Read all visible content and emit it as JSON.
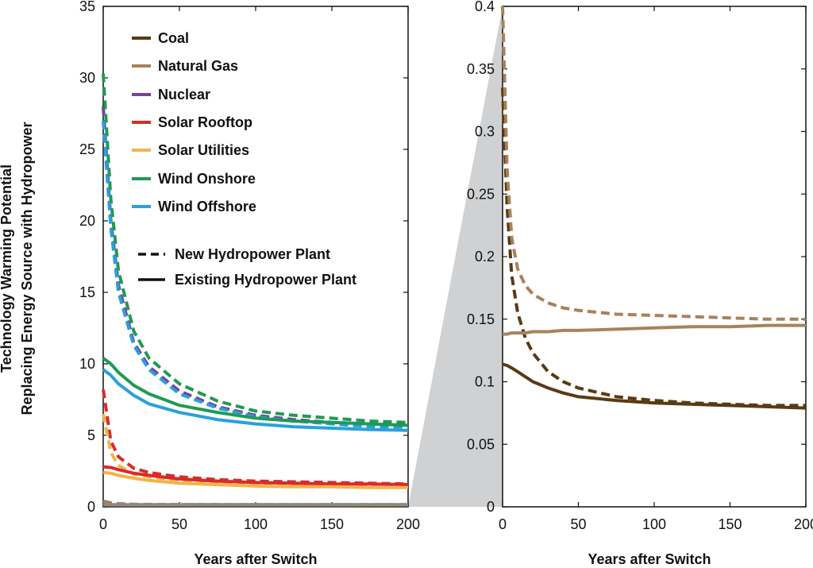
{
  "chart_data": [
    {
      "type": "line",
      "xlabel": "Years after Switch",
      "ylabel_lines": [
        "Technology Warming Potential",
        "Replacing Energy Source with Hydropower"
      ],
      "xlim": [
        0,
        200
      ],
      "ylim": [
        0,
        35
      ],
      "xticks": [
        0,
        50,
        100,
        150,
        200
      ],
      "yticks": [
        0,
        5,
        10,
        15,
        20,
        25,
        30,
        35
      ],
      "legend": {
        "placement": "top-left",
        "entries": [
          "Coal",
          "Natural Gas",
          "Nuclear",
          "Solar Rooftop",
          "Solar Utilities",
          "Wind Onshore",
          "Wind Offshore"
        ],
        "style_entries": [
          {
            "label": "New Hydropower Plant",
            "dash": "dashed"
          },
          {
            "label": "Existing Hydropower Plant",
            "dash": "solid"
          }
        ]
      },
      "x": [
        0,
        5,
        10,
        20,
        30,
        50,
        75,
        100,
        125,
        150,
        175,
        200
      ],
      "series": [
        {
          "name": "Coal",
          "style": "dashed",
          "color": "#5a3a12",
          "values": [
            0.34,
            0.25,
            0.19,
            0.15,
            0.13,
            0.11,
            0.097,
            0.09,
            0.086,
            0.083,
            0.082,
            0.081
          ]
        },
        {
          "name": "Coal",
          "style": "solid",
          "color": "#5a3a12",
          "values": [
            0.114,
            0.11,
            0.105,
            0.097,
            0.092,
            0.087,
            0.085,
            0.083,
            0.082,
            0.081,
            0.08,
            0.079
          ]
        },
        {
          "name": "Natural Gas",
          "style": "dashed",
          "color": "#a8825a",
          "values": [
            0.4,
            0.28,
            0.22,
            0.185,
            0.17,
            0.159,
            0.155,
            0.153,
            0.152,
            0.151,
            0.15,
            0.15
          ]
        },
        {
          "name": "Natural Gas",
          "style": "solid",
          "color": "#a8825a",
          "values": [
            0.138,
            0.139,
            0.139,
            0.14,
            0.141,
            0.142,
            0.143,
            0.144,
            0.144,
            0.145,
            0.145,
            0.145
          ]
        },
        {
          "name": "Nuclear",
          "style": "dashed",
          "color": "#7b3fa0",
          "values": [
            28.0,
            20.0,
            15.5,
            11.5,
            9.8,
            8.1,
            7.0,
            6.4,
            6.1,
            5.9,
            5.8,
            5.7
          ]
        },
        {
          "name": "Wind Onshore",
          "style": "dashed",
          "color": "#1e9a55",
          "values": [
            30.3,
            21.5,
            16.5,
            12.3,
            10.4,
            8.6,
            7.4,
            6.7,
            6.4,
            6.2,
            6.0,
            5.9
          ]
        },
        {
          "name": "Wind Offshore",
          "style": "dashed",
          "color": "#2aa0dc",
          "values": [
            27.0,
            19.5,
            15.0,
            11.3,
            9.6,
            7.9,
            6.9,
            6.3,
            6.0,
            5.8,
            5.6,
            5.5
          ]
        },
        {
          "name": "Wind Onshore",
          "style": "solid",
          "color": "#1e9a55",
          "values": [
            10.4,
            10.0,
            9.4,
            8.5,
            7.9,
            7.1,
            6.6,
            6.2,
            6.0,
            5.9,
            5.8,
            5.7
          ]
        },
        {
          "name": "Wind Offshore",
          "style": "solid",
          "color": "#2aa0dc",
          "values": [
            9.6,
            9.2,
            8.6,
            7.8,
            7.2,
            6.6,
            6.1,
            5.8,
            5.6,
            5.5,
            5.4,
            5.35
          ]
        },
        {
          "name": "Solar Rooftop",
          "style": "dashed",
          "color": "#d92b2b",
          "values": [
            8.2,
            4.6,
            3.5,
            2.7,
            2.4,
            2.1,
            1.9,
            1.8,
            1.75,
            1.7,
            1.65,
            1.6
          ]
        },
        {
          "name": "Solar Utilities",
          "style": "dashed",
          "color": "#f2b44a",
          "values": [
            6.5,
            3.8,
            2.9,
            2.3,
            2.1,
            1.85,
            1.7,
            1.6,
            1.55,
            1.5,
            1.45,
            1.45
          ]
        },
        {
          "name": "Solar Rooftop",
          "style": "solid",
          "color": "#d92b2b",
          "values": [
            2.8,
            2.75,
            2.6,
            2.35,
            2.2,
            1.95,
            1.8,
            1.7,
            1.65,
            1.6,
            1.6,
            1.55
          ]
        },
        {
          "name": "Solar Utilities",
          "style": "solid",
          "color": "#f2b44a",
          "values": [
            2.4,
            2.35,
            2.2,
            2.0,
            1.85,
            1.65,
            1.55,
            1.45,
            1.4,
            1.4,
            1.35,
            1.35
          ]
        },
        {
          "name": "Coal",
          "style": "solid",
          "color": "#8a8a8a",
          "values": [
            0.15,
            0.15,
            0.15,
            0.15,
            0.15,
            0.15,
            0.15,
            0.15,
            0.15,
            0.15,
            0.15,
            0.15
          ]
        }
      ]
    },
    {
      "type": "line",
      "xlabel": "Years after Switch",
      "xlim": [
        0,
        200
      ],
      "ylim": [
        0,
        0.4
      ],
      "xticks": [
        0,
        50,
        100,
        150,
        200
      ],
      "yticks": [
        0,
        0.05,
        0.1,
        0.15,
        0.2,
        0.25,
        0.3,
        0.35,
        0.4
      ],
      "ytick_labels": [
        "0",
        "0.05",
        "0.1",
        "0.15",
        "0.2",
        "0.25",
        "0.3",
        "0.35",
        "0.4"
      ],
      "x": [
        0,
        3,
        6,
        10,
        15,
        20,
        30,
        40,
        50,
        75,
        100,
        125,
        150,
        175,
        200
      ],
      "series": [
        {
          "name": "Coal",
          "style": "dashed",
          "color": "#5a3a12",
          "values": [
            0.335,
            0.24,
            0.185,
            0.155,
            0.135,
            0.123,
            0.108,
            0.1,
            0.095,
            0.088,
            0.085,
            0.083,
            0.082,
            0.081,
            0.081
          ]
        },
        {
          "name": "Coal",
          "style": "solid",
          "color": "#5a3a12",
          "values": [
            0.114,
            0.113,
            0.111,
            0.108,
            0.104,
            0.1,
            0.095,
            0.091,
            0.088,
            0.085,
            0.083,
            0.082,
            0.081,
            0.08,
            0.079
          ]
        },
        {
          "name": "Natural Gas",
          "style": "dashed",
          "color": "#a8825a",
          "values": [
            0.4,
            0.27,
            0.215,
            0.19,
            0.177,
            0.17,
            0.163,
            0.159,
            0.157,
            0.154,
            0.153,
            0.152,
            0.151,
            0.15,
            0.15
          ]
        },
        {
          "name": "Natural Gas",
          "style": "solid",
          "color": "#a8825a",
          "values": [
            0.138,
            0.138,
            0.139,
            0.139,
            0.139,
            0.14,
            0.14,
            0.141,
            0.141,
            0.142,
            0.143,
            0.144,
            0.144,
            0.145,
            0.145
          ]
        }
      ]
    }
  ]
}
